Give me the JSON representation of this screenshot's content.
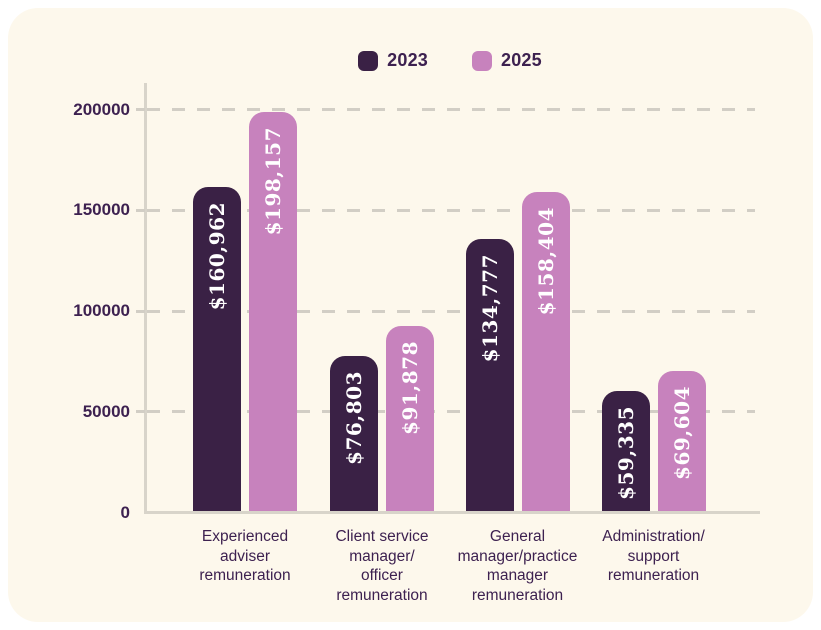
{
  "window": {
    "background": "#ffffff",
    "card_background": "#fdf8ec"
  },
  "legend": {
    "items": [
      {
        "label": "2023",
        "color": "#3a2145"
      },
      {
        "label": "2025",
        "color": "#c782bd"
      }
    ]
  },
  "chart_data": {
    "type": "bar",
    "title": "",
    "xlabel": "",
    "ylabel": "",
    "categories": [
      "Experienced adviser remuneration",
      "Client service manager/ officer remuneration",
      "General manager/practice manager remuneration",
      "Administration/ support remuneration"
    ],
    "category_lines": [
      "Experienced\nadviser\nremuneration",
      "Client service\nmanager/\nofficer\nremuneration",
      "General\nmanager/practice\nmanager\nremuneration",
      "Administration/\nsupport\nremuneration"
    ],
    "series": [
      {
        "name": "2023",
        "color": "#3a2145",
        "values": [
          160962,
          76803,
          134777,
          59335
        ],
        "data_labels": [
          "$160,962",
          "$76,803",
          "$134,777",
          "$59,335"
        ]
      },
      {
        "name": "2025",
        "color": "#c782bd",
        "values": [
          198157,
          91878,
          158404,
          69604
        ],
        "data_labels": [
          "$198,157",
          "$91,878",
          "$158,404",
          "$69,604"
        ]
      }
    ],
    "ylim": [
      0,
      200000
    ],
    "yticks": [
      0,
      50000,
      100000,
      150000,
      200000
    ],
    "ytick_labels": [
      "0",
      "50000",
      "100000",
      "150000",
      "200000"
    ],
    "grid": "horizontal-dashed",
    "grid_color": "#d2cec5",
    "axis_color": "#d8d4ca",
    "axis_text_color": "#3d2150",
    "value_label_color": "#ffffff",
    "legend_position": "top-center"
  }
}
